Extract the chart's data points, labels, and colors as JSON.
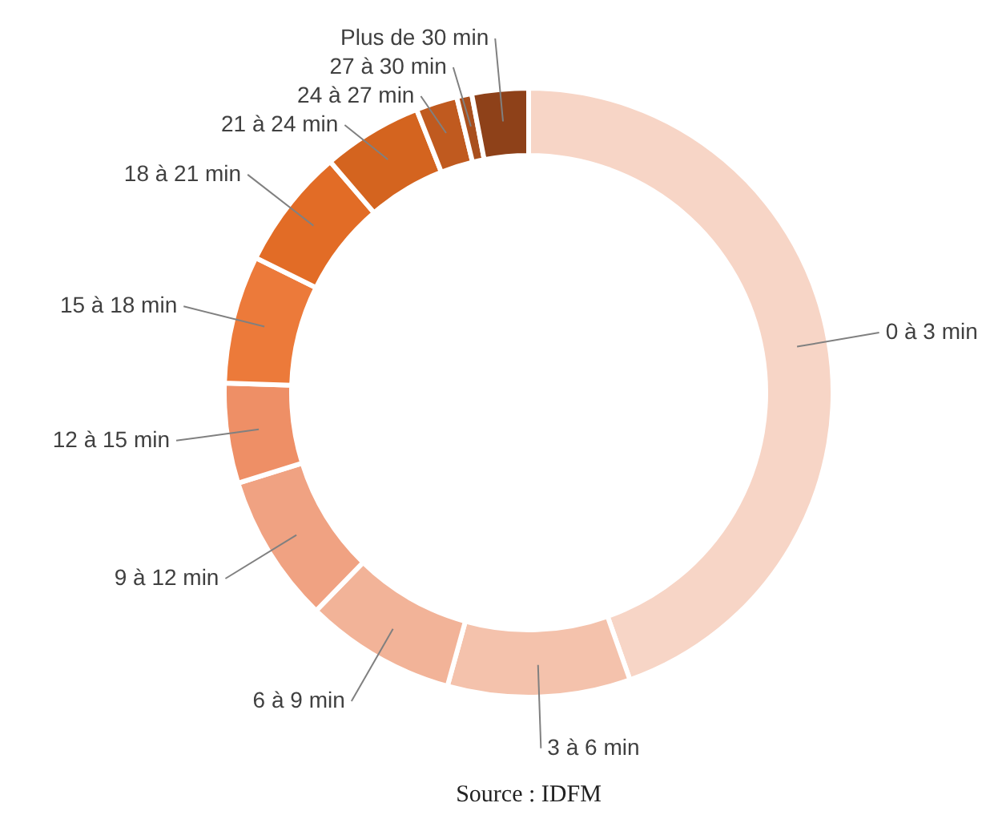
{
  "chart_data": {
    "type": "donut",
    "categories": [
      "0 à 3 min",
      "3 à 6 min",
      "6 à 9 min",
      "9 à 12 min",
      "12 à 15 min",
      "15 à 18 min",
      "18 à 21 min",
      "21 à 24 min",
      "24 à 27 min",
      "27 à 30 min",
      "Plus de 30 min"
    ],
    "values": [
      44.6,
      9.7,
      8,
      7.9,
      5.3,
      6.8,
      6.4,
      5.3,
      2.2,
      0.8,
      3
    ],
    "colors": [
      "#f7d5c6",
      "#f4c2ac",
      "#f2b398",
      "#f0a282",
      "#ee8f66",
      "#ec7a3a",
      "#e26c26",
      "#d4641f",
      "#c05a1f",
      "#a94f1d",
      "#8e4119"
    ],
    "annotations": [
      "Source : IDFM"
    ]
  }
}
